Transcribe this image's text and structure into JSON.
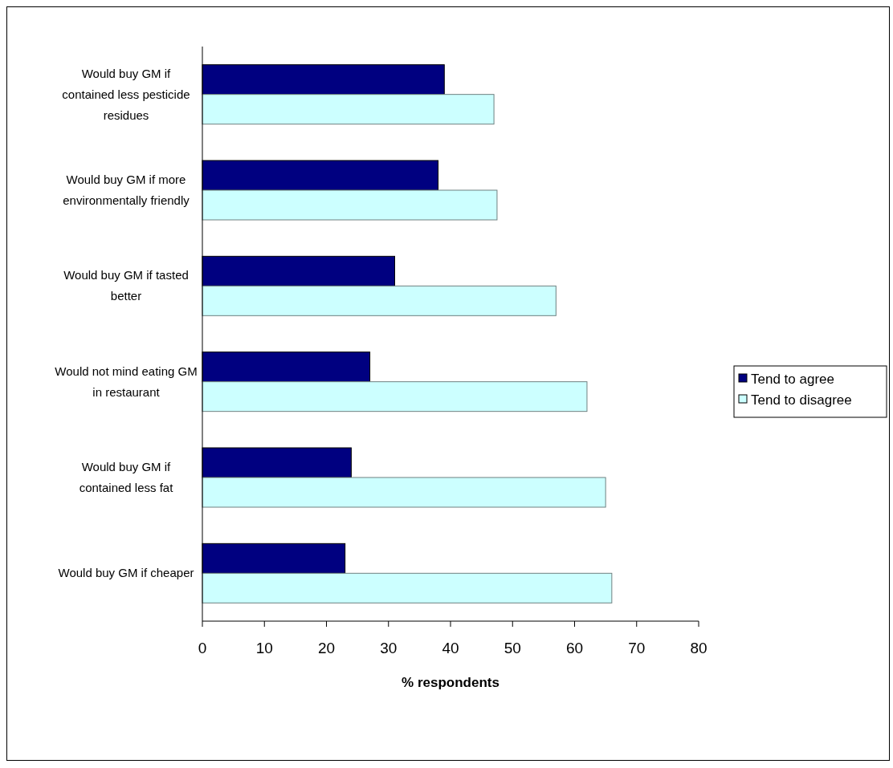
{
  "chart_data": {
    "type": "bar",
    "orientation": "horizontal",
    "xlabel": "% respondents",
    "categories": [
      "Would buy GM if contained less pesticide residues",
      "Would buy GM if more environmentally friendly",
      "Would buy GM if tasted better",
      "Would not mind eating GM in restaurant",
      "Would buy GM if contained less fat",
      "Would buy GM if cheaper"
    ],
    "series": [
      {
        "name": "Tend to agree",
        "color": "#000080",
        "values": [
          39,
          38,
          31,
          27,
          24,
          23
        ]
      },
      {
        "name": "Tend to disagree",
        "color": "#ccffff",
        "values": [
          47,
          47.5,
          57,
          62,
          65,
          66
        ]
      }
    ],
    "xlim": [
      0,
      80
    ],
    "xticks": [
      0,
      10,
      20,
      30,
      40,
      50,
      60,
      70,
      80
    ],
    "grid": false,
    "legend": "right"
  }
}
